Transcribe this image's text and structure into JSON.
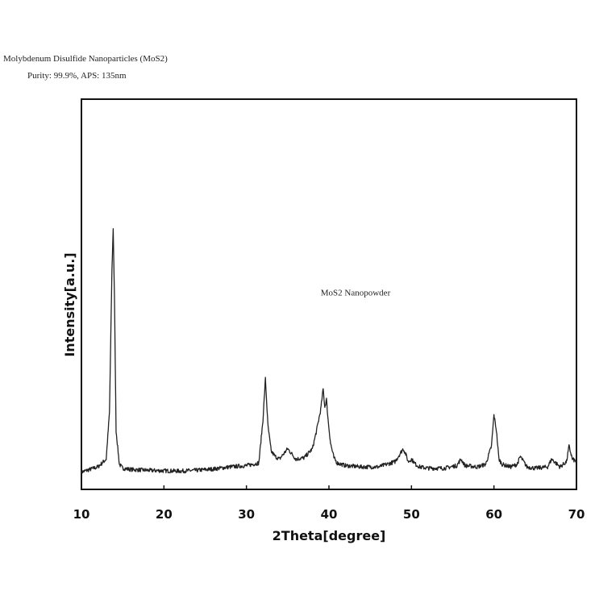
{
  "header": {
    "title": "Molybdenum Disulfide Nanoparticles (MoS2)",
    "subtitle": "Purity: 99.9%, APS: 135nm"
  },
  "chart_data": {
    "type": "line",
    "title": "Molybdenum Disulfide Nanoparticles (MoS2)",
    "xlabel": "2Theta[degree]",
    "ylabel": "Intensity[a.u.]",
    "xlim": [
      10,
      70
    ],
    "ylim": [
      0,
      100
    ],
    "xticks": [
      10,
      20,
      30,
      40,
      50,
      60,
      70
    ],
    "yticks_shown": false,
    "grid": false,
    "legend": "none",
    "annotations": [
      {
        "text": "MoS2 Nanopowder",
        "x": 39,
        "y": 70
      }
    ],
    "series": [
      {
        "color": "#222222",
        "x": [
          10.0,
          11.0,
          12.0,
          13.0,
          13.4,
          13.7,
          13.85,
          14.0,
          14.2,
          14.6,
          15.0,
          16.0,
          18.0,
          20.0,
          22.0,
          24.0,
          26.0,
          28.0,
          30.0,
          31.5,
          32.0,
          32.3,
          32.6,
          33.0,
          33.5,
          34.0,
          35.0,
          35.5,
          36.0,
          37.0,
          38.0,
          38.5,
          39.0,
          39.3,
          39.5,
          39.7,
          39.9,
          40.2,
          40.6,
          41.0,
          42.0,
          44.0,
          46.0,
          48.0,
          49.0,
          49.3,
          49.6,
          50.0,
          50.5,
          51.0,
          52.0,
          54.0,
          55.5,
          56.0,
          56.5,
          58.0,
          59.0,
          59.7,
          60.0,
          60.3,
          60.6,
          61.0,
          62.0,
          62.8,
          63.2,
          64.0,
          65.0,
          66.5,
          67.0,
          68.0,
          68.8,
          69.1,
          69.5,
          70.0
        ],
        "y": [
          2.0,
          3.0,
          4.0,
          7.0,
          25.0,
          80.0,
          96.0,
          70.0,
          18.0,
          5.0,
          3.5,
          3.0,
          2.7,
          2.5,
          2.4,
          2.7,
          3.2,
          4.0,
          4.5,
          5.5,
          22.0,
          38.0,
          20.0,
          10.0,
          8.0,
          7.0,
          11.0,
          9.0,
          7.0,
          7.5,
          11.0,
          18.0,
          26.0,
          34.0,
          27.0,
          30.0,
          22.0,
          13.0,
          7.5,
          5.5,
          4.5,
          4.0,
          4.0,
          6.0,
          11.0,
          9.0,
          6.0,
          7.0,
          5.0,
          4.0,
          3.5,
          3.5,
          4.5,
          7.0,
          4.5,
          4.0,
          5.0,
          12.0,
          24.0,
          18.0,
          7.0,
          5.0,
          4.0,
          5.0,
          8.0,
          4.0,
          3.5,
          4.0,
          7.0,
          4.0,
          6.0,
          12.0,
          7.0,
          6.0
        ]
      }
    ]
  }
}
